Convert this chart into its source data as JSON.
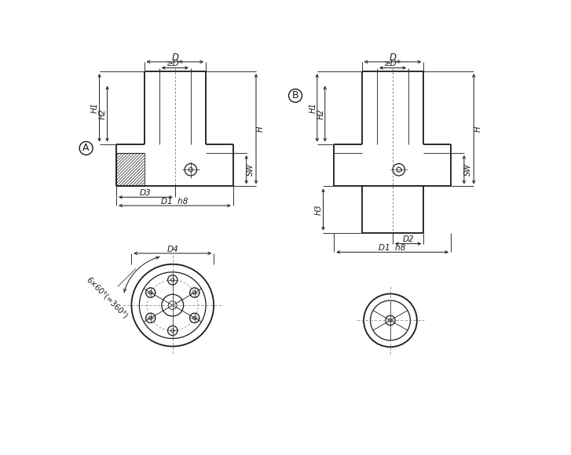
{
  "bg_color": "#ffffff",
  "line_color": "#1a1a1a",
  "labels": {
    "D": "D",
    "D_star": "≥D*",
    "H1": "H1",
    "H2": "H2",
    "H": "H",
    "SW": "SW",
    "D3": "D3",
    "D1_h8": "D1  h8",
    "D4": "D4",
    "angle_label": "6×60°(=360°)",
    "H3": "H3",
    "D2": "D2",
    "label_A": "A",
    "label_B": "B"
  }
}
